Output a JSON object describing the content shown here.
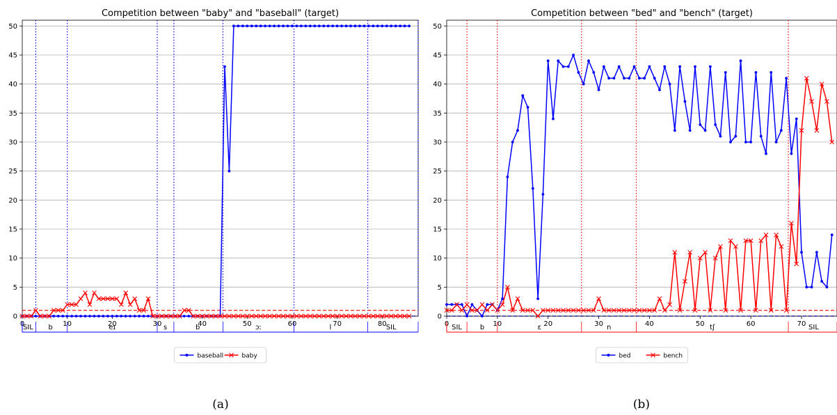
{
  "figure": {
    "captions": [
      "(a)",
      "(b)"
    ]
  },
  "chart_data": [
    {
      "type": "line",
      "title": "Competition between \"baby\" and \"baseball\" (target)",
      "xlim": [
        0,
        88
      ],
      "ylim": [
        0,
        51
      ],
      "xticks": [
        0,
        10,
        20,
        30,
        40,
        50,
        60,
        70,
        80
      ],
      "yticks": [
        0,
        5,
        10,
        15,
        20,
        25,
        30,
        35,
        40,
        45,
        50
      ],
      "grid": "horizontal",
      "threshold": 1,
      "legend_position": "bottom-center",
      "segment_color": "#0000ff",
      "boundaries": [
        3,
        10,
        30,
        33.7,
        44.6,
        60.4,
        76.8,
        88
      ],
      "segment_labels": [
        {
          "text": "SIL",
          "at": 1.3
        },
        {
          "text": "b",
          "at": 6.3
        },
        {
          "text": "eɪ",
          "at": 20
        },
        {
          "text": "s",
          "at": 31.8
        },
        {
          "text": "b",
          "at": 39
        },
        {
          "text": "ɔː",
          "at": 52.5
        },
        {
          "text": "l",
          "at": 68.5
        },
        {
          "text": "SIL",
          "at": 82
        }
      ],
      "series": [
        {
          "name": "baseball",
          "color": "#0000ff",
          "marker": "dot",
          "x": [
            0,
            1,
            2,
            3,
            4,
            5,
            6,
            7,
            8,
            9,
            10,
            11,
            12,
            13,
            14,
            15,
            16,
            17,
            18,
            19,
            20,
            21,
            22,
            23,
            24,
            25,
            26,
            27,
            28,
            29,
            30,
            31,
            32,
            33,
            34,
            35,
            36,
            37,
            38,
            39,
            40,
            41,
            42,
            43,
            44,
            45,
            46,
            47,
            48,
            49,
            50,
            51,
            52,
            53,
            54,
            55,
            56,
            57,
            58,
            59,
            60,
            61,
            62,
            63,
            64,
            65,
            66,
            67,
            68,
            69,
            70,
            71,
            72,
            73,
            74,
            75,
            76,
            77,
            78,
            79,
            80,
            81,
            82,
            83,
            84,
            85,
            86
          ],
          "y": [
            0,
            0,
            0,
            0,
            0,
            0,
            0,
            0,
            0,
            0,
            0,
            0,
            0,
            0,
            0,
            0,
            0,
            0,
            0,
            0,
            0,
            0,
            0,
            0,
            0,
            0,
            0,
            0,
            0,
            0,
            0,
            0,
            0,
            0,
            0,
            0,
            0,
            0,
            0,
            0,
            0,
            0,
            0,
            0,
            0,
            43,
            25,
            50,
            50,
            50,
            50,
            50,
            50,
            50,
            50,
            50,
            50,
            50,
            50,
            50,
            50,
            50,
            50,
            50,
            50,
            50,
            50,
            50,
            50,
            50,
            50,
            50,
            50,
            50,
            50,
            50,
            50,
            50,
            50,
            50,
            50,
            50,
            50,
            50,
            50,
            50,
            50
          ]
        },
        {
          "name": "baby",
          "color": "#ff0000",
          "marker": "x",
          "x": [
            0,
            1,
            2,
            3,
            4,
            5,
            6,
            7,
            8,
            9,
            10,
            11,
            12,
            13,
            14,
            15,
            16,
            17,
            18,
            19,
            20,
            21,
            22,
            23,
            24,
            25,
            26,
            27,
            28,
            29,
            30,
            31,
            32,
            33,
            34,
            35,
            36,
            37,
            38,
            39,
            40,
            41,
            42,
            43,
            44,
            45,
            46,
            47,
            48,
            49,
            50,
            51,
            52,
            53,
            54,
            55,
            56,
            57,
            58,
            59,
            60,
            61,
            62,
            63,
            64,
            65,
            66,
            67,
            68,
            69,
            70,
            71,
            72,
            73,
            74,
            75,
            76,
            77,
            78,
            79,
            80,
            81,
            82,
            83,
            84,
            85,
            86
          ],
          "y": [
            0,
            0,
            0,
            1,
            0,
            0,
            0,
            1,
            1,
            1,
            2,
            2,
            2,
            3,
            4,
            2,
            4,
            3,
            3,
            3,
            3,
            3,
            2,
            4,
            2,
            3,
            1,
            1,
            3,
            0,
            0,
            0,
            0,
            0,
            0,
            0,
            1,
            1,
            0,
            0,
            0,
            0,
            0,
            0,
            0,
            0,
            0,
            0,
            0,
            0,
            0,
            0,
            0,
            0,
            0,
            0,
            0,
            0,
            0,
            0,
            0,
            0,
            0,
            0,
            0,
            0,
            0,
            0,
            0,
            0,
            0,
            0,
            0,
            0,
            0,
            0,
            0,
            0,
            0,
            0,
            0,
            0,
            0,
            0,
            0,
            0,
            0
          ]
        }
      ]
    },
    {
      "type": "line",
      "title": "Competition between \"bed\" and \"bench\" (target)",
      "xlim": [
        0,
        77
      ],
      "ylim": [
        0,
        51
      ],
      "xticks": [
        0,
        10,
        20,
        30,
        40,
        50,
        60,
        70
      ],
      "yticks": [
        0,
        5,
        10,
        15,
        20,
        25,
        30,
        35,
        40,
        45,
        50
      ],
      "grid": "horizontal",
      "threshold": 1,
      "legend_position": "bottom-center",
      "segment_color": "#ff0000",
      "boundaries": [
        4,
        10,
        26.6,
        37.4,
        67.4,
        77
      ],
      "segment_labels": [
        {
          "text": "SIL",
          "at": 2
        },
        {
          "text": "b",
          "at": 7
        },
        {
          "text": "ɛ",
          "at": 18.3
        },
        {
          "text": "n",
          "at": 32
        },
        {
          "text": "tʃ",
          "at": 52.4
        },
        {
          "text": "SIL",
          "at": 72.4
        }
      ],
      "series": [
        {
          "name": "bed",
          "color": "#0000ff",
          "marker": "dot",
          "x": [
            0,
            1,
            2,
            3,
            4,
            5,
            6,
            7,
            8,
            9,
            10,
            11,
            12,
            13,
            14,
            15,
            16,
            17,
            18,
            19,
            20,
            21,
            22,
            23,
            24,
            25,
            26,
            27,
            28,
            29,
            30,
            31,
            32,
            33,
            34,
            35,
            36,
            37,
            38,
            39,
            40,
            41,
            42,
            43,
            44,
            45,
            46,
            47,
            48,
            49,
            50,
            51,
            52,
            53,
            54,
            55,
            56,
            57,
            58,
            59,
            60,
            61,
            62,
            63,
            64,
            65,
            66,
            67,
            68,
            69,
            70,
            71,
            72,
            73,
            74,
            75,
            76
          ],
          "y": [
            2,
            2,
            2,
            2,
            0,
            2,
            1,
            0,
            2,
            2,
            1,
            3,
            24,
            30,
            32,
            38,
            36,
            22,
            3,
            21,
            44,
            34,
            44,
            43,
            43,
            45,
            42,
            40,
            44,
            42,
            39,
            43,
            41,
            41,
            43,
            41,
            41,
            43,
            41,
            41,
            43,
            41,
            39,
            43,
            40,
            32,
            43,
            37,
            32,
            43,
            33,
            32,
            43,
            33,
            31,
            42,
            30,
            31,
            44,
            30,
            30,
            42,
            31,
            28,
            42,
            30,
            32,
            41,
            28,
            34,
            11,
            5,
            5,
            11,
            6,
            5,
            14
          ]
        },
        {
          "name": "bench",
          "color": "#ff0000",
          "marker": "x",
          "x": [
            0,
            1,
            2,
            3,
            4,
            5,
            6,
            7,
            8,
            9,
            10,
            11,
            12,
            13,
            14,
            15,
            16,
            17,
            18,
            19,
            20,
            21,
            22,
            23,
            24,
            25,
            26,
            27,
            28,
            29,
            30,
            31,
            32,
            33,
            34,
            35,
            36,
            37,
            38,
            39,
            40,
            41,
            42,
            43,
            44,
            45,
            46,
            47,
            48,
            49,
            50,
            51,
            52,
            53,
            54,
            55,
            56,
            57,
            58,
            59,
            60,
            61,
            62,
            63,
            64,
            65,
            66,
            67,
            68,
            69,
            70,
            71,
            72,
            73,
            74,
            75,
            76
          ],
          "y": [
            1,
            1,
            2,
            1,
            2,
            1,
            1,
            2,
            1,
            2,
            1,
            2,
            5,
            1,
            3,
            1,
            1,
            1,
            0,
            1,
            1,
            1,
            1,
            1,
            1,
            1,
            1,
            1,
            1,
            1,
            3,
            1,
            1,
            1,
            1,
            1,
            1,
            1,
            1,
            1,
            1,
            1,
            3,
            1,
            2,
            11,
            1,
            6,
            11,
            1,
            10,
            11,
            1,
            10,
            12,
            1,
            13,
            12,
            1,
            13,
            13,
            1,
            13,
            14,
            1,
            14,
            12,
            1,
            16,
            9,
            32,
            41,
            37,
            32,
            40,
            37,
            30
          ]
        }
      ]
    }
  ]
}
